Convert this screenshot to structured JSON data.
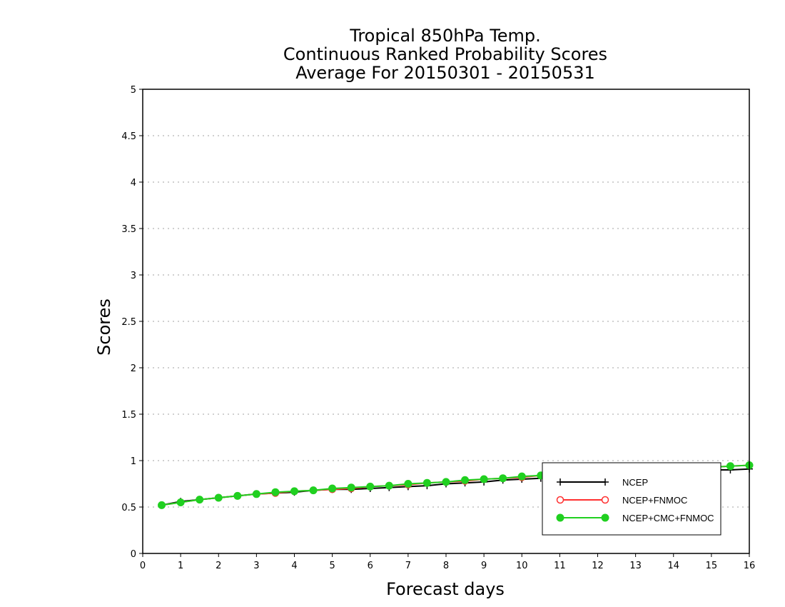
{
  "chart_data": {
    "type": "line",
    "title_lines": [
      "Tropical 850hPa Temp.",
      "Continuous Ranked Probability Scores",
      "Average For 20150301 - 20150531"
    ],
    "xlabel": "Forecast days",
    "ylabel": "Scores",
    "xlim": [
      0,
      16
    ],
    "ylim": [
      0,
      5
    ],
    "xticks": [
      "0",
      "1",
      "2",
      "3",
      "4",
      "5",
      "6",
      "7",
      "8",
      "9",
      "10",
      "11",
      "12",
      "13",
      "14",
      "15",
      "16"
    ],
    "yticks": [
      "0",
      "0.5",
      "1",
      "1.5",
      "2",
      "2.5",
      "3",
      "3.5",
      "4",
      "4.5",
      "5"
    ],
    "grid": "horizontal dotted",
    "legend_position": "bottom-right",
    "x": [
      0.5,
      1,
      1.5,
      2,
      2.5,
      3,
      3.5,
      4,
      4.5,
      5,
      5.5,
      6,
      6.5,
      7,
      7.5,
      8,
      8.5,
      9,
      9.5,
      10,
      10.5,
      11,
      11.5,
      12,
      12.5,
      13,
      13.5,
      14,
      14.5,
      15,
      15.5,
      16
    ],
    "series": [
      {
        "name": "NCEP",
        "color": "#000000",
        "marker": "plus",
        "values": [
          0.52,
          0.56,
          0.58,
          0.6,
          0.62,
          0.64,
          0.65,
          0.66,
          0.68,
          0.69,
          0.69,
          0.7,
          0.71,
          0.72,
          0.73,
          0.75,
          0.76,
          0.77,
          0.79,
          0.8,
          0.81,
          0.82,
          0.83,
          0.84,
          0.85,
          0.86,
          0.87,
          0.88,
          0.89,
          0.9,
          0.9,
          0.91
        ]
      },
      {
        "name": "NCEP+FNMOC",
        "color": "#ff3030",
        "marker": "open-circle",
        "values": [
          0.52,
          0.55,
          0.58,
          0.6,
          0.62,
          0.64,
          0.65,
          0.67,
          0.68,
          0.69,
          0.7,
          0.72,
          0.73,
          0.74,
          0.76,
          0.77,
          0.78,
          0.8,
          0.81,
          0.82,
          0.84,
          0.85,
          0.86,
          0.87,
          0.88,
          0.89,
          0.9,
          0.91,
          0.92,
          0.93,
          0.94,
          0.95
        ]
      },
      {
        "name": "NCEP+CMC+FNMOC",
        "color": "#20d020",
        "marker": "filled-circle",
        "values": [
          0.52,
          0.55,
          0.58,
          0.6,
          0.62,
          0.64,
          0.66,
          0.67,
          0.68,
          0.7,
          0.71,
          0.72,
          0.73,
          0.75,
          0.76,
          0.77,
          0.79,
          0.8,
          0.81,
          0.83,
          0.84,
          0.85,
          0.86,
          0.87,
          0.88,
          0.89,
          0.9,
          0.91,
          0.92,
          0.93,
          0.94,
          0.95
        ]
      }
    ]
  }
}
